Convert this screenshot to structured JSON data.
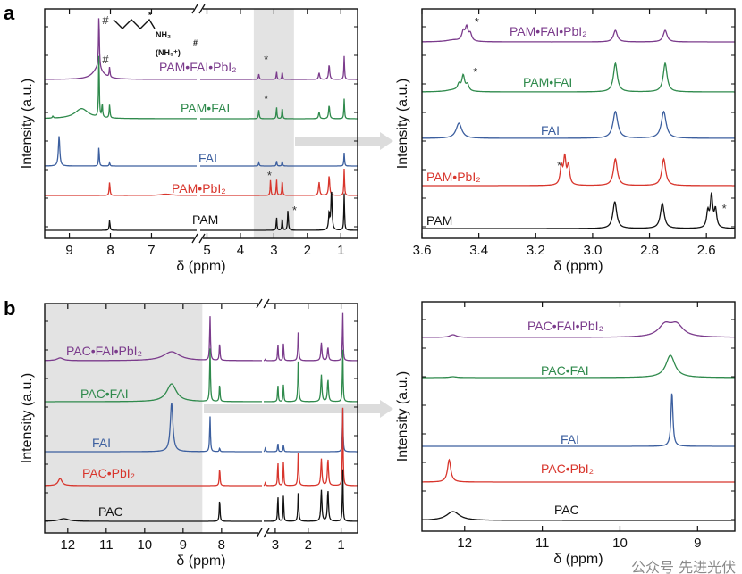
{
  "panel_labels": [
    "a",
    "b"
  ],
  "molecule": {
    "amine": "NH₂",
    "ammonium": "(NH₃⁺)",
    "hash": "#",
    "star": "*"
  },
  "watermark": "公众号 先进光伏",
  "colors": {
    "purple": "#7b3b8c",
    "green": "#2f8a4c",
    "blue": "#3c5f9f",
    "red": "#d8352c",
    "black": "#111111",
    "highlight": "#e3e3e3"
  },
  "chart_data": [
    {
      "id": "a-full",
      "type": "line",
      "xlabel": "δ (ppm)",
      "ylabel": "Intensity (a.u.)",
      "x_reversed": true,
      "x_segments": [
        [
          9.6,
          5.9
        ],
        [
          5.2,
          0.5
        ]
      ],
      "x_ticks": [
        9,
        8,
        7,
        5,
        4,
        3,
        2,
        1
      ],
      "highlight_ppm": [
        3.6,
        2.4
      ],
      "series": [
        {
          "name": "PAM•FAI•PbI₂",
          "color": "#7b3b8c",
          "peaks": [
            [
              8.28,
              0.8,
              0.012
            ],
            [
              8.3,
              0.17,
              0.15
            ],
            [
              8.02,
              0.15,
              0.012
            ],
            [
              3.45,
              0.08,
              0.015
            ],
            [
              2.92,
              0.12,
              0.012
            ],
            [
              2.75,
              0.12,
              0.012
            ],
            [
              1.65,
              0.1,
              0.02
            ],
            [
              1.35,
              0.22,
              0.02
            ],
            [
              0.9,
              0.35,
              0.012
            ]
          ],
          "marks": [
            {
              "ppm": 8.2,
              "text": "#"
            },
            {
              "ppm": 3.3,
              "text": "*"
            }
          ]
        },
        {
          "name": "PAM•FAI",
          "color": "#2f8a4c",
          "peaks": [
            [
              9.4,
              0.03,
              0.015
            ],
            [
              8.7,
              0.15,
              0.2
            ],
            [
              8.28,
              1.0,
              0.01
            ],
            [
              8.2,
              0.2,
              0.012
            ],
            [
              8.02,
              0.2,
              0.012
            ],
            [
              3.45,
              0.13,
              0.015
            ],
            [
              2.92,
              0.18,
              0.012
            ],
            [
              2.75,
              0.18,
              0.012
            ],
            [
              1.65,
              0.1,
              0.02
            ],
            [
              1.35,
              0.2,
              0.02
            ],
            [
              0.9,
              0.3,
              0.012
            ]
          ],
          "marks": [
            {
              "ppm": 8.2,
              "text": "#"
            },
            {
              "ppm": 3.3,
              "text": "*"
            }
          ]
        },
        {
          "name": "FAI",
          "color": "#3c5f9f",
          "peaks": [
            [
              9.25,
              0.45,
              0.02
            ],
            [
              8.28,
              0.3,
              0.01
            ],
            [
              8.02,
              0.05,
              0.012
            ],
            [
              3.45,
              0.05,
              0.015
            ],
            [
              2.92,
              0.08,
              0.012
            ],
            [
              2.75,
              0.08,
              0.012
            ],
            [
              0.9,
              0.2,
              0.012
            ]
          ],
          "marks": []
        },
        {
          "name": "PAM•PbI₂",
          "color": "#d8352c",
          "peaks": [
            [
              8.02,
              0.2,
              0.012
            ],
            [
              6.65,
              0.02,
              0.15
            ],
            [
              3.1,
              0.25,
              0.012
            ],
            [
              2.92,
              0.25,
              0.012
            ],
            [
              2.75,
              0.25,
              0.012
            ],
            [
              1.65,
              0.2,
              0.02
            ],
            [
              1.35,
              0.3,
              0.02
            ],
            [
              0.9,
              0.4,
              0.012
            ]
          ],
          "marks": [
            {
              "ppm": 3.2,
              "text": "*"
            }
          ]
        },
        {
          "name": "PAM",
          "color": "#111111",
          "peaks": [
            [
              8.02,
              0.15,
              0.012
            ],
            [
              2.92,
              0.2,
              0.012
            ],
            [
              2.75,
              0.2,
              0.012
            ],
            [
              2.58,
              0.3,
              0.015
            ],
            [
              1.35,
              0.25,
              0.02
            ],
            [
              1.28,
              0.6,
              0.02
            ],
            [
              0.9,
              0.55,
              0.012
            ]
          ],
          "marks": [
            {
              "ppm": 2.45,
              "text": "*"
            }
          ]
        }
      ]
    },
    {
      "id": "a-zoom",
      "type": "line",
      "xlabel": "δ (ppm)",
      "ylabel": "Intensity (a.u.)",
      "x_reversed": true,
      "x_segments": [
        [
          3.6,
          2.5
        ]
      ],
      "x_ticks": [
        3.6,
        3.4,
        3.2,
        3.0,
        2.8,
        2.6
      ],
      "tick_labels": [
        "3.6",
        "3.4",
        "3.2",
        "3.0",
        "2.8",
        "2.6"
      ],
      "series": [
        {
          "name": "PAM•FAI•PbI₂",
          "color": "#7b3b8c",
          "peaks": [
            [
              3.49,
              0.02,
              0.03
            ],
            [
              3.455,
              0.1,
              0.006
            ],
            [
              3.443,
              0.15,
              0.006
            ],
            [
              3.43,
              0.08,
              0.006
            ],
            [
              2.92,
              0.13,
              0.008
            ],
            [
              2.745,
              0.13,
              0.008
            ]
          ],
          "marks": [
            {
              "ppm": 3.415,
              "text": "*"
            }
          ]
        },
        {
          "name": "PAM•FAI",
          "color": "#2f8a4c",
          "peaks": [
            [
              3.49,
              0.02,
              0.03
            ],
            [
              3.47,
              0.07,
              0.006
            ],
            [
              3.455,
              0.17,
              0.006
            ],
            [
              3.44,
              0.07,
              0.006
            ],
            [
              2.92,
              0.32,
              0.008
            ],
            [
              2.745,
              0.32,
              0.008
            ]
          ],
          "marks": [
            {
              "ppm": 3.42,
              "text": "*"
            }
          ]
        },
        {
          "name": "FAI",
          "color": "#3c5f9f",
          "peaks": [
            [
              3.47,
              0.17,
              0.012
            ],
            [
              2.92,
              0.3,
              0.01
            ],
            [
              2.75,
              0.3,
              0.01
            ]
          ],
          "marks": []
        },
        {
          "name": "PAM•PbI₂",
          "color": "#d8352c",
          "peaks": [
            [
              3.11,
              0.2,
              0.005
            ],
            [
              3.098,
              0.3,
              0.005
            ],
            [
              3.085,
              0.22,
              0.005
            ],
            [
              2.92,
              0.3,
              0.008
            ],
            [
              2.75,
              0.3,
              0.008
            ]
          ],
          "marks": [
            {
              "ppm": 3.125,
              "text": "*"
            }
          ]
        },
        {
          "name": "PAM",
          "color": "#111111",
          "peaks": [
            [
              2.922,
              0.3,
              0.008
            ],
            [
              2.755,
              0.28,
              0.008
            ],
            [
              2.595,
              0.18,
              0.005
            ],
            [
              2.582,
              0.36,
              0.005
            ],
            [
              2.568,
              0.2,
              0.005
            ]
          ],
          "marks": [
            {
              "ppm": 2.545,
              "text": "*"
            }
          ]
        }
      ]
    },
    {
      "id": "b-full",
      "type": "line",
      "xlabel": "δ (ppm)",
      "ylabel": "Intensity (a.u.)",
      "x_reversed": true,
      "x_segments": [
        [
          12.6,
          6.95
        ],
        [
          3.35,
          0.5
        ]
      ],
      "x_ticks": [
        12,
        11,
        10,
        9,
        8,
        3,
        2,
        1
      ],
      "highlight_ppm": [
        12.6,
        8.5
      ],
      "series": [
        {
          "name": "PAC•FAI•PbI₂",
          "color": "#7b3b8c",
          "peaks": [
            [
              12.2,
              0.03,
              0.1
            ],
            [
              9.3,
              0.1,
              0.25
            ],
            [
              8.3,
              0.5,
              0.012
            ],
            [
              8.05,
              0.2,
              0.012
            ],
            [
              3.3,
              0.02,
              0.01
            ],
            [
              2.92,
              0.2,
              0.012
            ],
            [
              2.75,
              0.2,
              0.012
            ],
            [
              2.3,
              0.35,
              0.015
            ],
            [
              1.6,
              0.2,
              0.02
            ],
            [
              1.4,
              0.15,
              0.02
            ],
            [
              0.95,
              0.55,
              0.012
            ]
          ],
          "marks": []
        },
        {
          "name": "PAC•FAI",
          "color": "#2f8a4c",
          "peaks": [
            [
              9.3,
              0.2,
              0.15
            ],
            [
              8.3,
              0.6,
              0.012
            ],
            [
              8.05,
              0.2,
              0.012
            ],
            [
              2.92,
              0.2,
              0.012
            ],
            [
              2.75,
              0.2,
              0.012
            ],
            [
              2.3,
              0.5,
              0.015
            ],
            [
              1.6,
              0.3,
              0.02
            ],
            [
              1.4,
              0.25,
              0.02
            ],
            [
              0.95,
              0.6,
              0.012
            ]
          ],
          "marks": []
        },
        {
          "name": "FAI",
          "color": "#3c5f9f",
          "peaks": [
            [
              9.3,
              0.55,
              0.04
            ],
            [
              8.3,
              0.4,
              0.012
            ],
            [
              8.05,
              0.04,
              0.012
            ],
            [
              3.3,
              0.06,
              0.01
            ],
            [
              2.92,
              0.1,
              0.012
            ],
            [
              2.75,
              0.08,
              0.012
            ],
            [
              0.95,
              0.5,
              0.012
            ]
          ],
          "marks": []
        },
        {
          "name": "PAC•PbI₂",
          "color": "#d8352c",
          "peaks": [
            [
              12.2,
              0.08,
              0.06
            ],
            [
              8.05,
              0.2,
              0.012
            ],
            [
              3.3,
              0.05,
              0.01
            ],
            [
              2.92,
              0.28,
              0.012
            ],
            [
              2.75,
              0.28,
              0.012
            ],
            [
              2.3,
              0.4,
              0.015
            ],
            [
              1.6,
              0.3,
              0.02
            ],
            [
              1.4,
              0.3,
              0.02
            ],
            [
              0.95,
              0.9,
              0.012
            ]
          ],
          "marks": []
        },
        {
          "name": "PAC",
          "color": "#111111",
          "peaks": [
            [
              12.1,
              0.03,
              0.15
            ],
            [
              8.05,
              0.25,
              0.012
            ],
            [
              2.92,
              0.3,
              0.012
            ],
            [
              2.75,
              0.3,
              0.012
            ],
            [
              2.3,
              0.35,
              0.015
            ],
            [
              1.6,
              0.35,
              0.02
            ],
            [
              1.4,
              0.35,
              0.02
            ],
            [
              0.95,
              0.6,
              0.012
            ]
          ],
          "marks": []
        }
      ]
    },
    {
      "id": "b-zoom",
      "type": "line",
      "xlabel": "δ (ppm)",
      "ylabel": "Intensity (a.u.)",
      "x_reversed": true,
      "x_segments": [
        [
          12.55,
          8.52
        ]
      ],
      "x_ticks": [
        12,
        11,
        10,
        9
      ],
      "series": [
        {
          "name": "PAC•FAI•PbI₂",
          "color": "#7b3b8c",
          "peaks": [
            [
              12.15,
              0.03,
              0.05
            ],
            [
              9.42,
              0.13,
              0.1
            ],
            [
              9.27,
              0.13,
              0.1
            ]
          ],
          "marks": []
        },
        {
          "name": "PAC•FAI",
          "color": "#2f8a4c",
          "peaks": [
            [
              12.15,
              0.01,
              0.05
            ],
            [
              9.35,
              0.25,
              0.07
            ]
          ],
          "marks": []
        },
        {
          "name": "FAI",
          "color": "#3c5f9f",
          "peaks": [
            [
              9.33,
              0.6,
              0.015
            ]
          ],
          "marks": []
        },
        {
          "name": "PAC•PbI₂",
          "color": "#d8352c",
          "peaks": [
            [
              12.2,
              0.25,
              0.025
            ]
          ],
          "marks": []
        },
        {
          "name": "PAC",
          "color": "#111111",
          "peaks": [
            [
              12.15,
              0.1,
              0.1
            ]
          ],
          "marks": []
        }
      ]
    }
  ]
}
